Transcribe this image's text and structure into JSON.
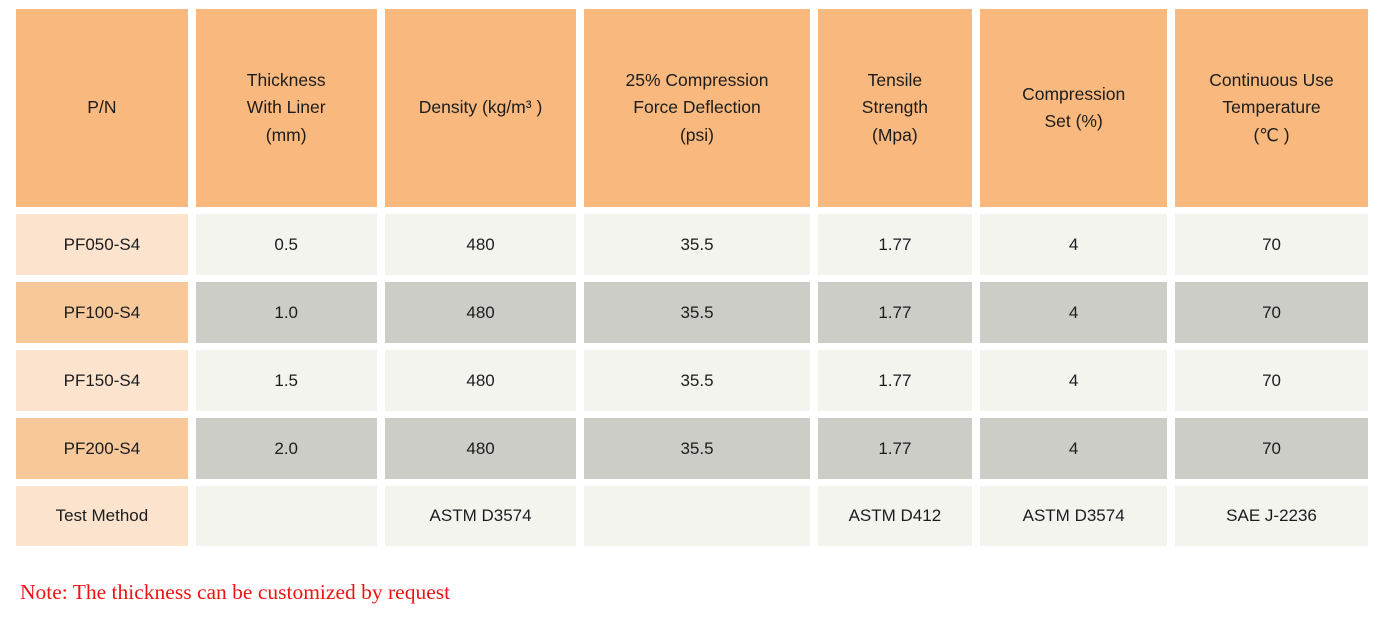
{
  "table": {
    "headers": [
      "P/N",
      "Thickness\nWith Liner\n(mm)",
      "Density (kg/m³ )",
      "25% Compression\nForce Deflection\n(psi)",
      "Tensile\nStrength\n(Mpa)",
      "Compression\nSet (%)",
      "Continuous Use\nTemperature\n(℃ )"
    ],
    "rows": [
      {
        "pn": "PF050-S4",
        "values": [
          "0.5",
          "480",
          "35.5",
          "1.77",
          "4",
          "70"
        ]
      },
      {
        "pn": "PF100-S4",
        "values": [
          "1.0",
          "480",
          "35.5",
          "1.77",
          "4",
          "70"
        ]
      },
      {
        "pn": "PF150-S4",
        "values": [
          "1.5",
          "480",
          "35.5",
          "1.77",
          "4",
          "70"
        ]
      },
      {
        "pn": "PF200-S4",
        "values": [
          "2.0",
          "480",
          "35.5",
          "1.77",
          "4",
          "70"
        ]
      },
      {
        "pn": "Test Method",
        "values": [
          "",
          "ASTM D3574",
          "",
          "ASTM D412",
          "ASTM D3574",
          "SAE J-2236"
        ]
      }
    ]
  },
  "note": "Note: The thickness can be customized by request",
  "colors": {
    "header_bg": "#f9b97e",
    "pn_light_bg": "#fbe3cd",
    "pn_dark_bg": "#f7c89a",
    "cell_light_bg": "#f4f4ef",
    "cell_dark_bg": "#cdcdc8",
    "note_text": "#ee1414",
    "body_text": "#1c1c1c",
    "page_bg": "#ffffff"
  }
}
